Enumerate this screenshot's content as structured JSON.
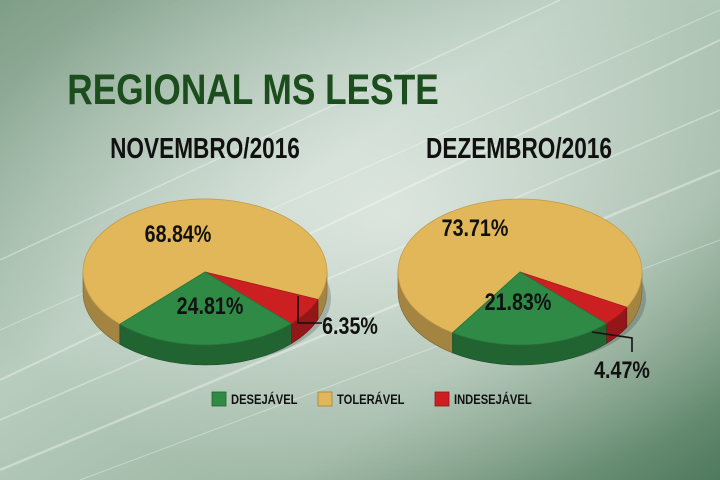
{
  "title": "REGIONAL MS LESTE",
  "colors": {
    "desejavel": "#2f8a45",
    "toleravel": "#e2b75a",
    "indesejavel": "#cc1f22",
    "title": "#1c4d1c",
    "text": "#111111"
  },
  "legend": [
    {
      "key": "desejavel",
      "label": "DESEJÁVEL"
    },
    {
      "key": "toleravel",
      "label": "TOLERÁVEL"
    },
    {
      "key": "indesejavel",
      "label": "INDESEJÁVEL"
    }
  ],
  "chart_data": [
    {
      "type": "pie",
      "title": "NOVEMBRO/2016",
      "slices": [
        {
          "key": "toleravel",
          "label": "68.84%",
          "value": 68.84
        },
        {
          "key": "desejavel",
          "label": "24.81%",
          "value": 24.81
        },
        {
          "key": "indesejavel",
          "label": "6.35%",
          "value": 6.35
        }
      ]
    },
    {
      "type": "pie",
      "title": "DEZEMBRO/2016",
      "slices": [
        {
          "key": "toleravel",
          "label": "73.71%",
          "value": 73.71
        },
        {
          "key": "desejavel",
          "label": "21.83%",
          "value": 21.83
        },
        {
          "key": "indesejavel",
          "label": "4.47%",
          "value": 4.47
        }
      ]
    }
  ]
}
